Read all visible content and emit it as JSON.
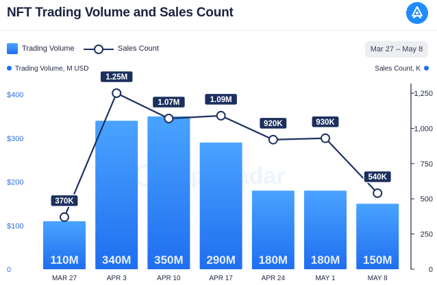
{
  "header": {
    "title": "NFT Trading Volume and Sales Count",
    "date_range": "Mar 27 – May 8"
  },
  "legend": {
    "bar_label": "Trading Volume",
    "line_label": "Sales Count"
  },
  "axes": {
    "left_title": "Trading Volume, M USD",
    "right_title": "Sales Count, K"
  },
  "colors": {
    "bar_top": "#4aa3ff",
    "bar_bottom": "#1f6ef0",
    "line": "#1c2f5e",
    "badge": "#1c2f5e",
    "tick": "#2f6fe0"
  },
  "chart_data": {
    "type": "bar",
    "title": "NFT Trading Volume and Sales Count",
    "categories": [
      "MAR 27",
      "APR 3",
      "APR 10",
      "APR 17",
      "APR 24",
      "MAY 1",
      "MAY 8"
    ],
    "series": [
      {
        "name": "Trading Volume",
        "type": "bar",
        "axis": "left",
        "unit": "M USD",
        "values": [
          110,
          340,
          350,
          290,
          180,
          180,
          150
        ],
        "labels": [
          "110M",
          "340M",
          "350M",
          "290M",
          "180M",
          "180M",
          "150M"
        ]
      },
      {
        "name": "Sales Count",
        "type": "line",
        "axis": "right",
        "unit": "K",
        "values": [
          370,
          1250,
          1070,
          1090,
          920,
          930,
          540
        ],
        "labels": [
          "370K",
          "1.25M",
          "1.07M",
          "1.09M",
          "920K",
          "930K",
          "540K"
        ]
      }
    ],
    "left_axis": {
      "label": "Trading Volume, M USD",
      "range": [
        0,
        420
      ],
      "ticks": [
        0,
        100,
        200,
        300,
        400
      ],
      "tick_labels": [
        "0",
        "$100",
        "$200",
        "$300",
        "$400"
      ]
    },
    "right_axis": {
      "label": "Sales Count, K",
      "range": [
        0,
        1300
      ],
      "ticks": [
        0,
        250,
        500,
        750,
        1000,
        1250
      ],
      "tick_labels": [
        "0",
        "250",
        "500",
        "750",
        "1,000",
        "1,250"
      ]
    }
  }
}
